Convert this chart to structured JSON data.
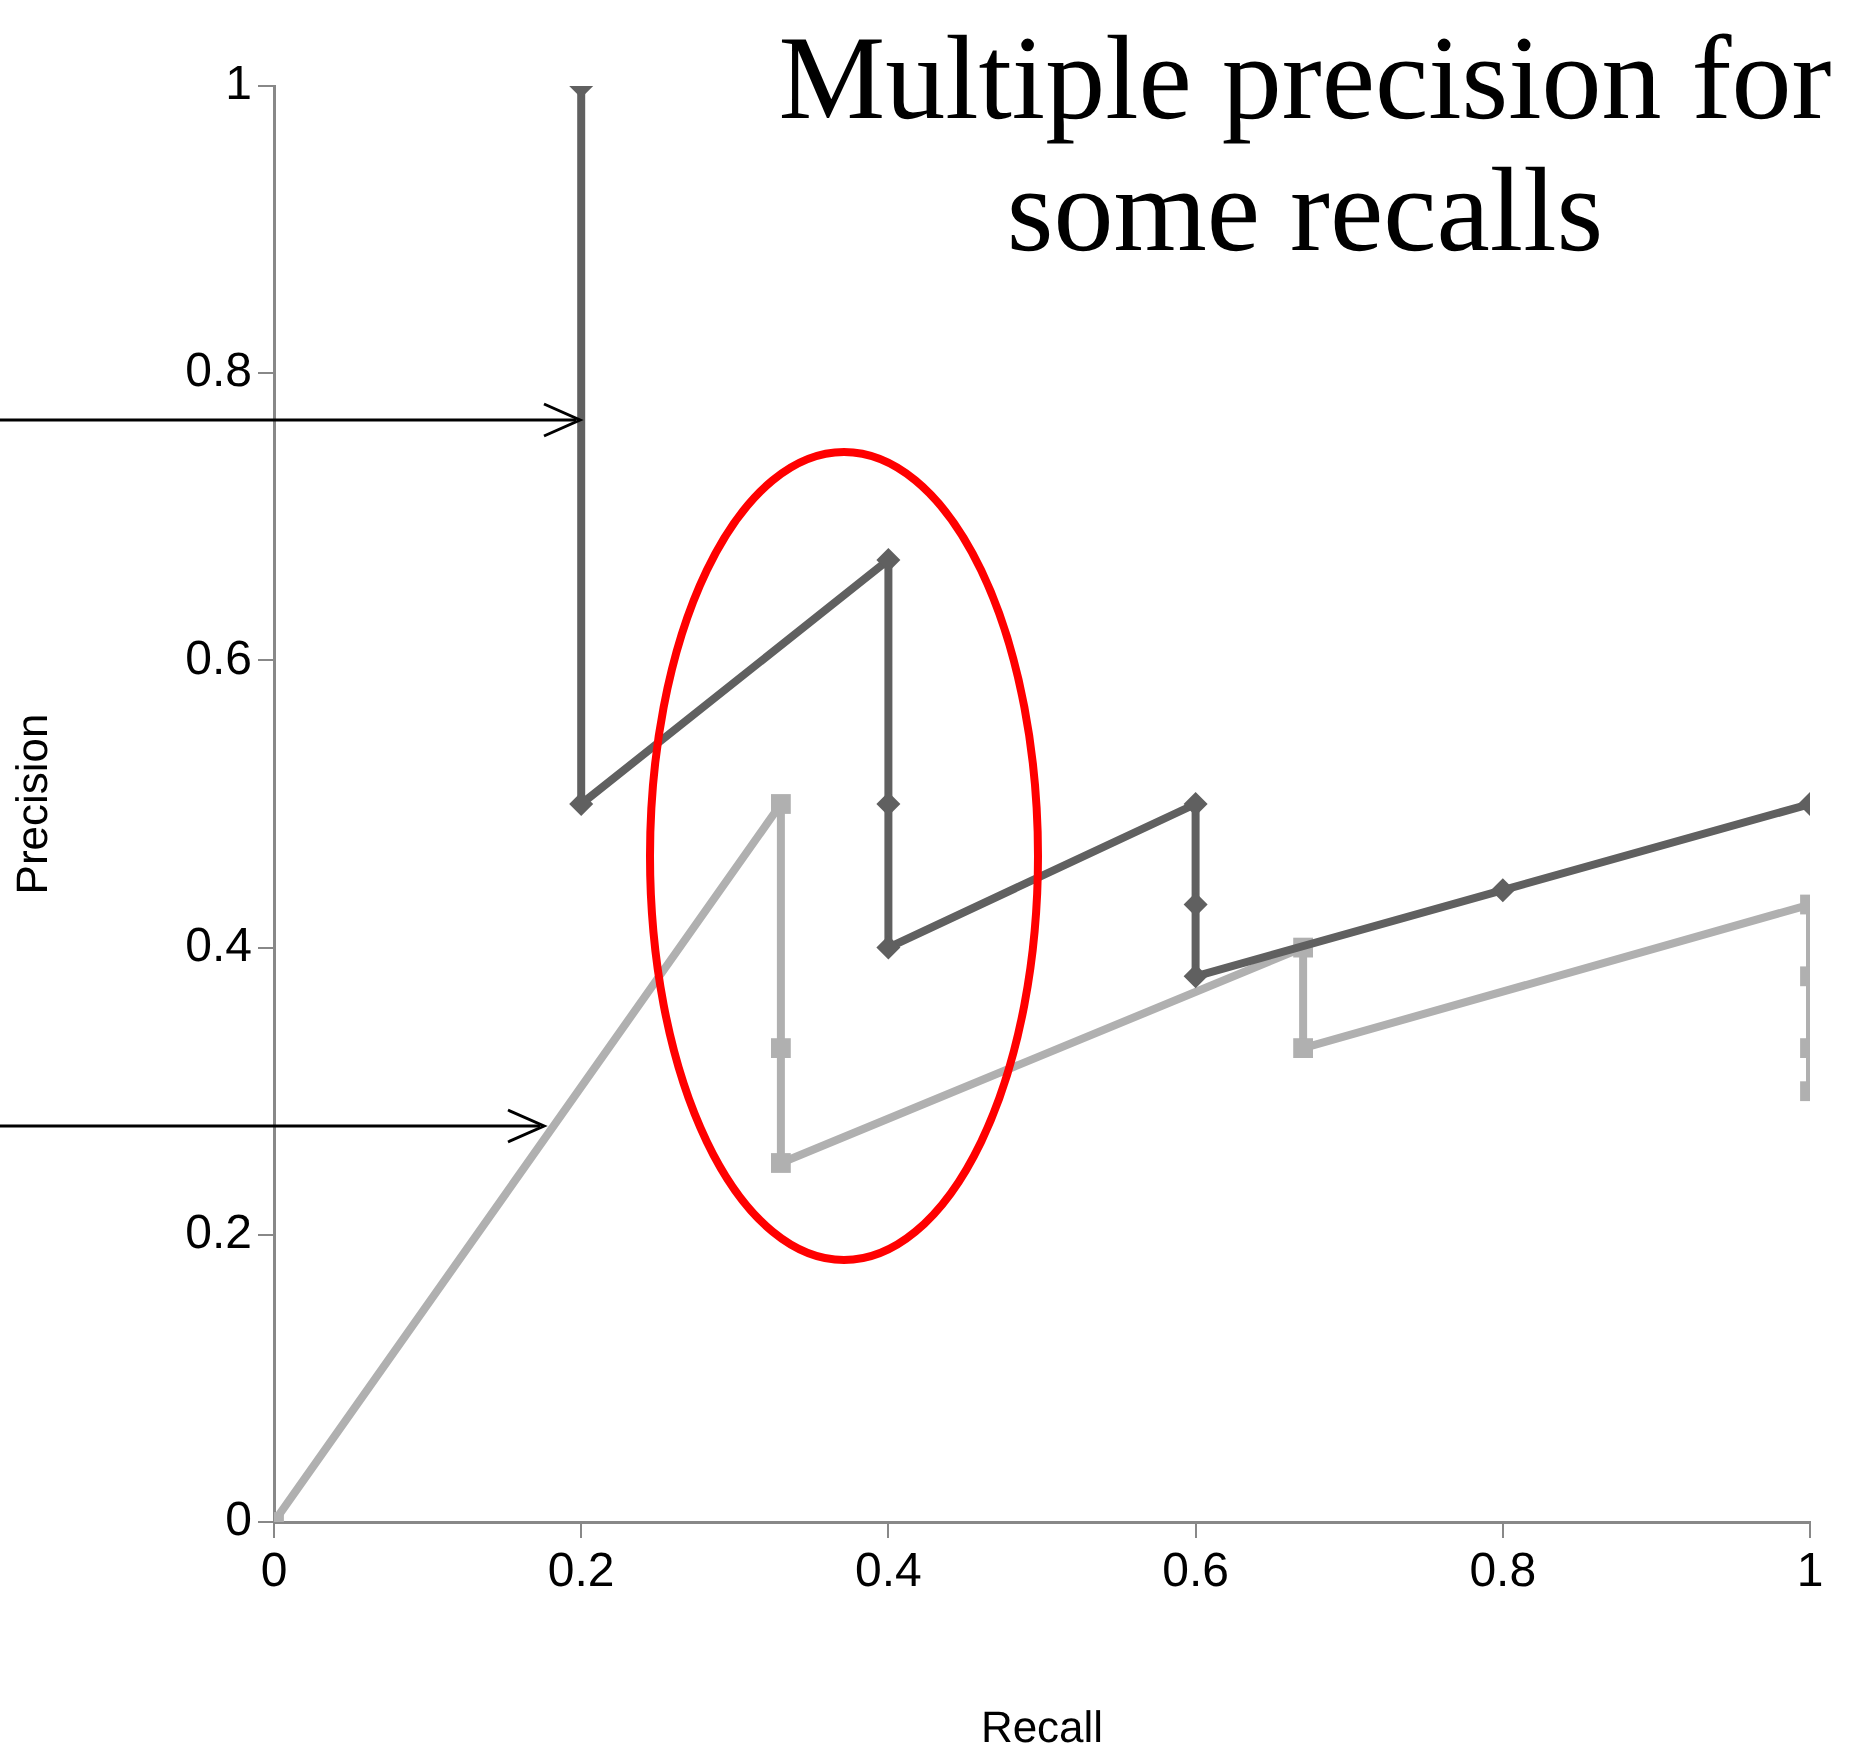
{
  "chart_data": {
    "type": "line",
    "title": "Multiple precision for some recalls",
    "xlabel": "Recall",
    "ylabel": "Precision",
    "xlim": [
      0,
      1
    ],
    "xticks": [
      0,
      0.2,
      0.4,
      0.6,
      0.8,
      1
    ],
    "ylim": [
      0,
      1
    ],
    "yticks": [
      0,
      0.2,
      0.4,
      0.6,
      0.8,
      1
    ],
    "grid": false,
    "legend": false,
    "series": [
      {
        "color": "#606060",
        "marker": "diamond",
        "x": [
          0.2,
          0.2,
          0.4,
          0.4,
          0.4,
          0.6,
          0.6,
          0.6,
          0.8,
          1
        ],
        "values": [
          1,
          0.5,
          0.67,
          0.5,
          0.4,
          0.5,
          0.43,
          0.38,
          0.44,
          0.5
        ]
      },
      {
        "color": "#b0b0b0",
        "marker": "square",
        "x": [
          0,
          0.33,
          0.33,
          0.33,
          0.67,
          0.67,
          1,
          1,
          1,
          1
        ],
        "values": [
          0,
          0.5,
          0.33,
          0.25,
          0.4,
          0.33,
          0.43,
          0.38,
          0.33,
          0.3
        ]
      }
    ]
  }
}
